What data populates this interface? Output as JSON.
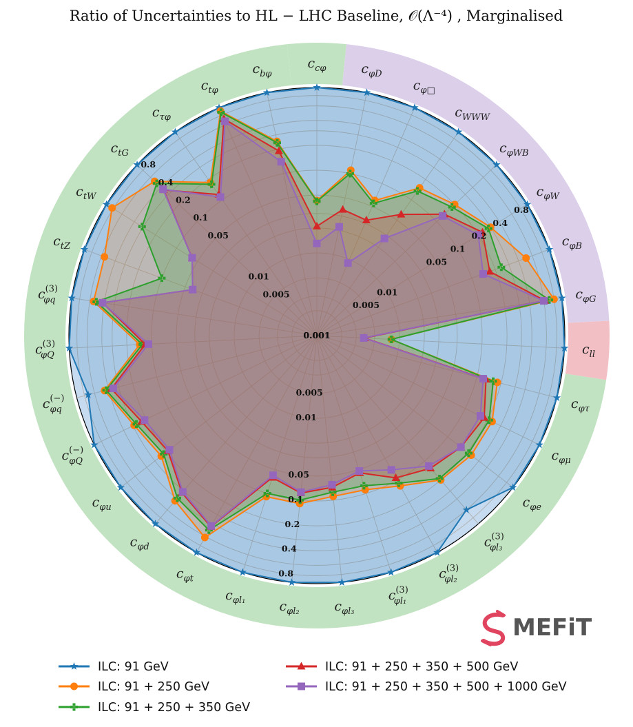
{
  "chart_data": {
    "type": "radar",
    "title": "Ratio of Uncertainties to HL − LHC Baseline, 𝒪(Λ⁻⁴) , Marginalised",
    "radial_scale": "log",
    "rlim": [
      0.001,
      1.0
    ],
    "radial_ticks": [
      {
        "value": 0.001,
        "label": "0.001"
      },
      {
        "value": 0.005,
        "label": "0.005"
      },
      {
        "value": 0.01,
        "label": "0.01"
      },
      {
        "value": 0.05,
        "label": "0.05"
      },
      {
        "value": 0.1,
        "label": "0.1"
      },
      {
        "value": 0.2,
        "label": "0.2"
      },
      {
        "value": 0.4,
        "label": "0.4"
      },
      {
        "value": 0.8,
        "label": "0.8"
      }
    ],
    "grid": true,
    "legend_position": "bottom",
    "categories": [
      {
        "base": "c",
        "sub": "cφ",
        "group": "yukawa"
      },
      {
        "base": "c",
        "sub": "φD",
        "group": "bosonic"
      },
      {
        "base": "c",
        "sub": "φ□",
        "group": "bosonic"
      },
      {
        "base": "c",
        "sub": "WWW",
        "group": "bosonic"
      },
      {
        "base": "c",
        "sub": "φWB",
        "group": "bosonic"
      },
      {
        "base": "c",
        "sub": "φW",
        "group": "bosonic"
      },
      {
        "base": "c",
        "sub": "φB",
        "group": "bosonic"
      },
      {
        "base": "c",
        "sub": "φG",
        "group": "bosonic"
      },
      {
        "base": "c",
        "sub": "ll",
        "group": "four-lepton"
      },
      {
        "base": "c",
        "sub": "φτ",
        "group": "fermionic"
      },
      {
        "base": "c",
        "sub": "φμ",
        "group": "fermionic"
      },
      {
        "base": "c",
        "sub": "φe",
        "group": "fermionic"
      },
      {
        "base": "c",
        "sub": "φl₃",
        "sup": "(3)",
        "group": "fermionic"
      },
      {
        "base": "c",
        "sub": "φl₂",
        "sup": "(3)",
        "group": "fermionic"
      },
      {
        "base": "c",
        "sub": "φl₁",
        "sup": "(3)",
        "group": "fermionic"
      },
      {
        "base": "c",
        "sub": "φl₃",
        "group": "fermionic"
      },
      {
        "base": "c",
        "sub": "φl₂",
        "group": "fermionic"
      },
      {
        "base": "c",
        "sub": "φl₁",
        "group": "fermionic"
      },
      {
        "base": "c",
        "sub": "φt",
        "group": "fermionic"
      },
      {
        "base": "c",
        "sub": "φd",
        "group": "fermionic"
      },
      {
        "base": "c",
        "sub": "φu",
        "group": "fermionic"
      },
      {
        "base": "c",
        "sub": "φQ",
        "sup": "(−)",
        "group": "fermionic"
      },
      {
        "base": "c",
        "sub": "φq",
        "sup": "(−)",
        "group": "fermionic"
      },
      {
        "base": "c",
        "sub": "φQ",
        "sup": "(3)",
        "group": "fermionic"
      },
      {
        "base": "c",
        "sub": "φq",
        "sup": "(3)",
        "group": "fermionic"
      },
      {
        "base": "c",
        "sub": "tZ",
        "group": "fermionic"
      },
      {
        "base": "c",
        "sub": "tW",
        "group": "fermionic"
      },
      {
        "base": "c",
        "sub": "tG",
        "group": "fermionic"
      },
      {
        "base": "c",
        "sub": "τφ",
        "group": "fermionic"
      },
      {
        "base": "c",
        "sub": "tφ",
        "group": "fermionic"
      },
      {
        "base": "c",
        "sub": "bφ",
        "group": "fermionic"
      }
    ],
    "series": [
      {
        "name": "ILC: 91 GeV",
        "color": "#1f77b4",
        "marker": "star",
        "values": [
          1.0,
          1.0,
          1.0,
          1.0,
          1.0,
          1.0,
          1.0,
          1.0,
          1.0,
          1.0,
          1.0,
          1.0,
          0.6,
          1.0,
          1.0,
          1.0,
          1.0,
          1.0,
          1.0,
          1.0,
          1.0,
          1.0,
          0.72,
          1.0,
          1.0,
          1.0,
          1.0,
          1.0,
          1.0,
          1.0,
          1.0
        ]
      },
      {
        "name": "ILC: 91 + 250 GeV",
        "color": "#ff7f0e",
        "marker": "circle",
        "values": [
          0.043,
          0.11,
          0.06,
          0.15,
          0.2,
          0.3,
          0.5,
          0.8,
          0.008,
          0.18,
          0.23,
          0.23,
          0.2,
          0.12,
          0.09,
          0.09,
          0.11,
          0.11,
          0.62,
          0.43,
          0.24,
          0.29,
          0.45,
          0.14,
          0.54,
          0.55,
          0.83,
          0.51,
          0.18,
          0.9,
          0.25
        ]
      },
      {
        "name": "ILC: 91 + 250 + 350 GeV",
        "color": "#2ca02c",
        "marker": "plus",
        "values": [
          0.042,
          0.1,
          0.055,
          0.135,
          0.18,
          0.28,
          0.24,
          0.7,
          0.008,
          0.16,
          0.21,
          0.21,
          0.19,
          0.11,
          0.08,
          0.08,
          0.1,
          0.1,
          0.49,
          0.39,
          0.22,
          0.27,
          0.43,
          0.13,
          0.5,
          0.1,
          0.31,
          0.47,
          0.17,
          0.87,
          0.24
        ]
      },
      {
        "name": "ILC: 91 + 250 + 350 + 500 GeV",
        "color": "#d62728",
        "marker": "triangle",
        "values": [
          0.021,
          0.036,
          0.033,
          0.061,
          0.135,
          0.23,
          0.17,
          0.62,
          0.0038,
          0.13,
          0.18,
          0.16,
          0.13,
          0.093,
          0.055,
          0.07,
          0.082,
          0.063,
          0.44,
          0.32,
          0.19,
          0.23,
          0.37,
          0.12,
          0.42,
          0.04,
          0.06,
          0.36,
          0.12,
          0.71,
          0.19
        ]
      },
      {
        "name": "ILC: 91 + 250 + 350 + 500 + 1000 GeV",
        "color": "#9467bd",
        "marker": "square",
        "values": [
          0.013,
          0.022,
          0.009,
          0.027,
          0.126,
          0.2,
          0.14,
          0.6,
          0.0037,
          0.12,
          0.16,
          0.16,
          0.12,
          0.072,
          0.052,
          0.065,
          0.08,
          0.059,
          0.43,
          0.31,
          0.18,
          0.21,
          0.35,
          0.11,
          0.42,
          0.04,
          0.06,
          0.37,
          0.11,
          0.66,
          0.14
        ]
      }
    ]
  },
  "logo": {
    "text": "MEFiT",
    "mark_color": "#e0445e",
    "text_color": "#555555"
  },
  "colors": {
    "yukawa_band": "#c1e3c1",
    "bosonic_band": "#dccfea",
    "four_lepton_band": "#f2bfc4",
    "fermionic_band": "#c1e3c1",
    "plot_fill": "#c6dbef"
  }
}
